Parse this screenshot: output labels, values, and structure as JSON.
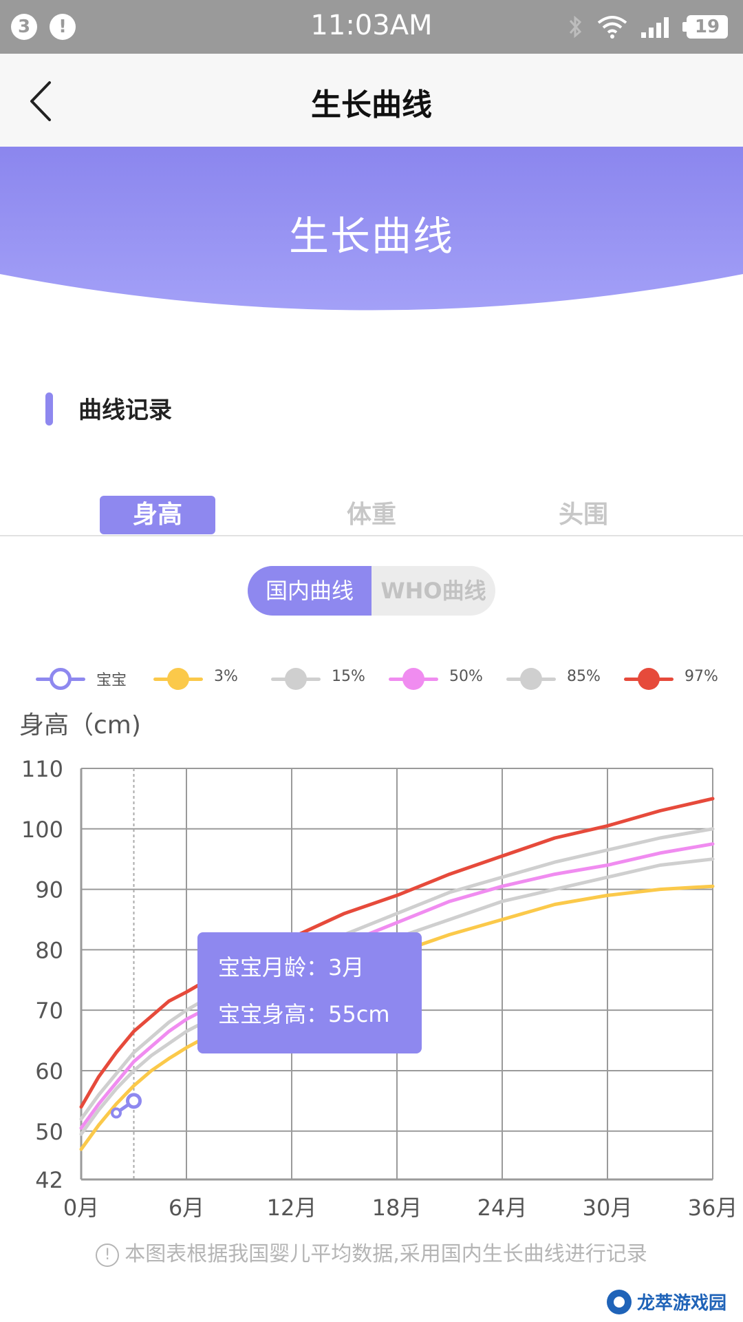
{
  "status_bar": {
    "notification_count": "3",
    "alert_badge": "!",
    "time": "11:03AM",
    "battery": "19",
    "icons": [
      "bluetooth-icon",
      "wifi-icon",
      "signal-icon",
      "battery-icon"
    ]
  },
  "nav": {
    "title": "生长曲线",
    "back_icon": "chevron-left-icon"
  },
  "banner": {
    "title": "生长曲线",
    "color_top": "#8b86ee",
    "color_bottom": "#a3a0f7"
  },
  "section": {
    "title": "曲线记录"
  },
  "tabs": [
    {
      "label": "身高",
      "active": true
    },
    {
      "label": "体重",
      "active": false
    },
    {
      "label": "头围",
      "active": false
    }
  ],
  "segment": {
    "options": [
      "国内曲线",
      "WHO曲线"
    ],
    "selected": "国内曲线"
  },
  "colors": {
    "accent": "#8e88ef",
    "p3": "#fbc94a",
    "p15": "#cfcfcf",
    "p50": "#f08cf0",
    "p85": "#cfcfcf",
    "p97": "#e64a3b"
  },
  "chart_data": {
    "type": "line",
    "ylabel": "身高（cm)",
    "xlabel": "",
    "x_ticks": [
      0,
      6,
      12,
      18,
      24,
      30,
      36
    ],
    "x_tick_labels": [
      "0月",
      "6月",
      "12月",
      "18月",
      "24月",
      "30月",
      "36月"
    ],
    "y_ticks": [
      42,
      50,
      60,
      70,
      80,
      90,
      100,
      110
    ],
    "xlim": [
      0,
      36
    ],
    "ylim": [
      42,
      110
    ],
    "grid": true,
    "legend_placement": "top",
    "x": [
      0,
      1,
      2,
      3,
      4,
      5,
      6,
      9,
      12,
      15,
      18,
      21,
      24,
      27,
      30,
      33,
      36
    ],
    "series": [
      {
        "name": "3%",
        "color": "#fbc94a",
        "values": [
          47,
          51,
          54.5,
          57.5,
          60,
          62,
          63.8,
          68.5,
          72.5,
          76,
          79.5,
          82.5,
          85,
          87.5,
          89,
          90,
          90.5
        ]
      },
      {
        "name": "15%",
        "color": "#cfcfcf",
        "values": [
          49.5,
          53.5,
          57,
          60,
          62.5,
          64.5,
          66.5,
          71,
          75,
          78.5,
          82,
          85,
          88,
          90,
          92,
          94,
          95
        ]
      },
      {
        "name": "50%",
        "color": "#f08cf0",
        "values": [
          50.5,
          54.5,
          58,
          61.5,
          64,
          66.5,
          68.5,
          73,
          77.5,
          81,
          84.5,
          88,
          90.5,
          92.5,
          94,
          96,
          97.5
        ]
      },
      {
        "name": "85%",
        "color": "#cfcfcf",
        "values": [
          52,
          56,
          59.5,
          63,
          65.5,
          68,
          70,
          75,
          79,
          82.5,
          86,
          89.5,
          92,
          94.5,
          96.5,
          98.5,
          100
        ]
      },
      {
        "name": "97%",
        "color": "#e64a3b",
        "values": [
          54,
          59,
          63,
          66.5,
          69,
          71.5,
          73,
          78,
          82,
          86,
          89,
          92.5,
          95.5,
          98.5,
          100.5,
          103,
          105
        ]
      }
    ],
    "baby": {
      "name": "宝宝",
      "color": "#8e88ef",
      "points": [
        {
          "x": 2,
          "y": 53
        },
        {
          "x": 3,
          "y": 55
        }
      ]
    },
    "cursor_month": 3,
    "tooltip": {
      "age_label": "宝宝月龄：3月",
      "height_label": "宝宝身高：55cm"
    }
  },
  "footnote": "本图表根据我国婴儿平均数据,采用国内生长曲线进行记录",
  "watermark": "龙萃游戏园"
}
